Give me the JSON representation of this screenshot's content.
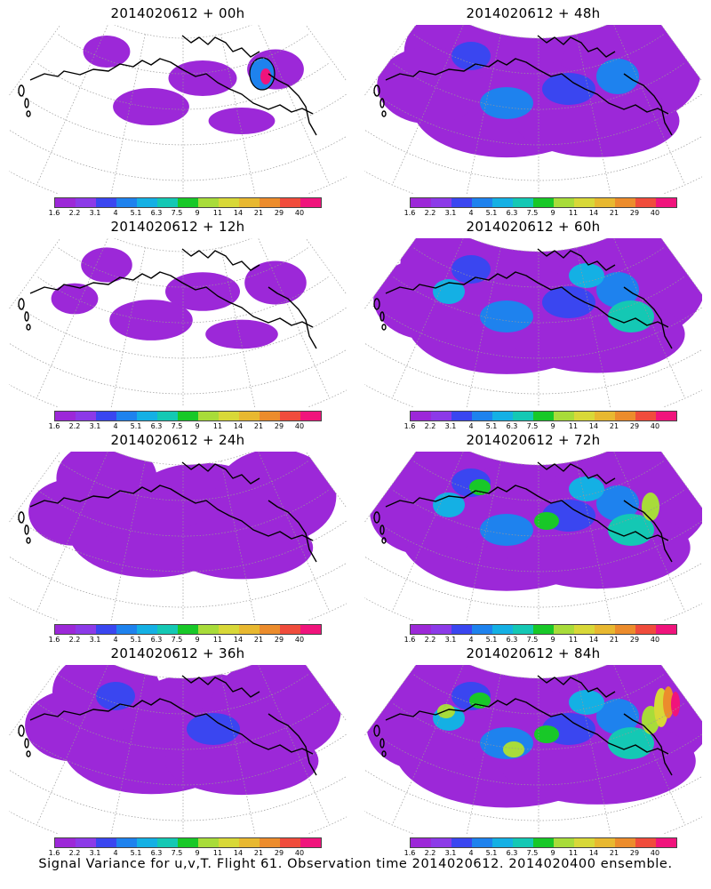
{
  "figure": {
    "caption": "Signal Variance for u,v,T. Flight 61. Observation time 2014020612. 2014020400 ensemble."
  },
  "colorbar": {
    "labels": [
      "1.6",
      "2.2",
      "3.1",
      "4",
      "5.1",
      "6.3",
      "7.5",
      "9",
      "11",
      "14",
      "21",
      "29",
      "40"
    ],
    "colors": [
      "#9c28d8",
      "#8c3ae8",
      "#3a46f0",
      "#1e82ee",
      "#14b0e4",
      "#14c8b4",
      "#18c828",
      "#a8dc3a",
      "#d8d838",
      "#e8b830",
      "#ec8c2c",
      "#f04c3c",
      "#f0147c"
    ]
  },
  "panels": [
    {
      "title": "2014020612 + 00h",
      "level": 0
    },
    {
      "title": "2014020612 + 12h",
      "level": 1
    },
    {
      "title": "2014020612 + 24h",
      "level": 2
    },
    {
      "title": "2014020612 + 36h",
      "level": 3
    },
    {
      "title": "2014020612 + 48h",
      "level": 4
    },
    {
      "title": "2014020612 + 60h",
      "level": 5
    },
    {
      "title": "2014020612 + 72h",
      "level": 6
    },
    {
      "title": "2014020612 + 84h",
      "level": 7
    }
  ]
}
